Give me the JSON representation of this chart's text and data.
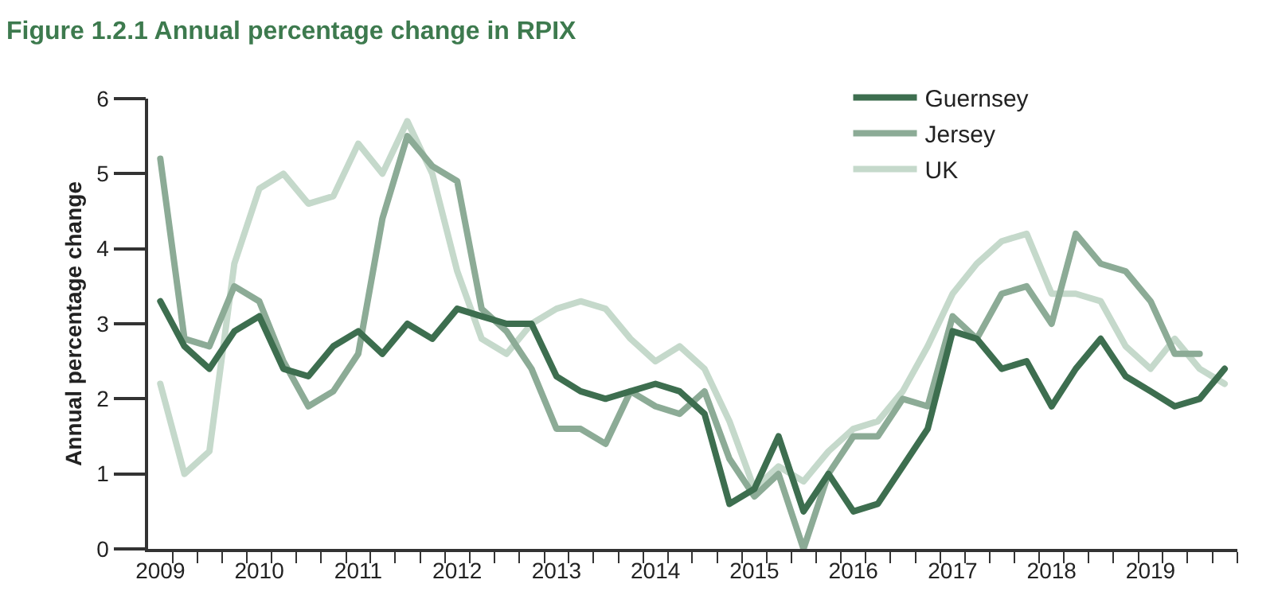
{
  "chart_data": {
    "type": "line",
    "title": "Figure 1.2.1 Annual percentage change in RPIX",
    "ylabel": "Annual percentage change",
    "x": [
      "2009-02-15",
      "2009-05-15",
      "2009-08-15",
      "2009-11-15",
      "2010-02-15",
      "2010-05-15",
      "2010-08-15",
      "2010-11-15",
      "2011-02-15",
      "2011-05-15",
      "2011-08-15",
      "2011-11-15",
      "2012-02-15",
      "2012-05-15",
      "2012-08-15",
      "2012-11-15",
      "2013-02-15",
      "2013-05-15",
      "2013-08-15",
      "2013-11-15",
      "2014-02-15",
      "2014-05-15",
      "2014-08-15",
      "2014-11-15",
      "2015-02-15",
      "2015-05-15",
      "2015-08-15",
      "2015-11-15",
      "2016-02-15",
      "2016-05-15",
      "2016-08-15",
      "2016-11-15",
      "2017-02-15",
      "2017-05-15",
      "2017-08-15",
      "2017-11-15",
      "2018-02-15",
      "2018-05-15",
      "2018-08-15",
      "2018-11-15",
      "2019-02-15",
      "2019-05-15",
      "2019-08-15",
      "2019-11-15"
    ],
    "series": [
      {
        "name": "Guernsey",
        "color": "#3d6e4f",
        "values": [
          3.3,
          2.7,
          2.4,
          2.9,
          3.1,
          2.4,
          2.3,
          2.7,
          2.9,
          2.6,
          3.0,
          2.8,
          3.2,
          3.1,
          3.0,
          3.0,
          2.3,
          2.1,
          2.0,
          2.1,
          2.2,
          2.1,
          1.8,
          0.6,
          0.8,
          1.5,
          0.5,
          1.0,
          0.5,
          0.6,
          1.1,
          1.6,
          2.9,
          2.8,
          2.4,
          2.5,
          1.9,
          2.4,
          2.8,
          2.3,
          2.1,
          1.9,
          2.0,
          2.4
        ]
      },
      {
        "name": "Jersey",
        "color": "#8cab96",
        "values": [
          5.2,
          2.8,
          2.7,
          3.5,
          3.3,
          2.5,
          1.9,
          2.1,
          2.6,
          4.4,
          5.5,
          5.1,
          4.9,
          3.2,
          2.9,
          2.4,
          1.6,
          1.6,
          1.4,
          2.1,
          1.9,
          1.8,
          2.1,
          1.2,
          0.7,
          1.0,
          0.0,
          1.0,
          1.5,
          1.5,
          2.0,
          1.9,
          3.1,
          2.8,
          3.4,
          3.5,
          3.0,
          4.2,
          3.8,
          3.7,
          3.3,
          2.6,
          2.6,
          null
        ]
      },
      {
        "name": "UK",
        "color": "#c5d9cb",
        "values": [
          2.2,
          1.0,
          1.3,
          3.8,
          4.8,
          5.0,
          4.6,
          4.7,
          5.4,
          5.0,
          5.7,
          5.0,
          3.7,
          2.8,
          2.6,
          3.0,
          3.2,
          3.3,
          3.2,
          2.8,
          2.5,
          2.7,
          2.4,
          1.7,
          0.8,
          1.1,
          0.9,
          1.3,
          1.6,
          1.7,
          2.1,
          2.7,
          3.4,
          3.8,
          4.1,
          4.2,
          3.4,
          3.4,
          3.3,
          2.7,
          2.4,
          2.8,
          2.4,
          2.2
        ]
      }
    ],
    "xlim": [
      "2009-01-01",
      "2020-01-01"
    ],
    "xticks": [
      {
        "value": "2009-02-15",
        "label": "2009"
      },
      {
        "value": "2010-02-15",
        "label": "2010"
      },
      {
        "value": "2011-02-15",
        "label": "2011"
      },
      {
        "value": "2012-02-15",
        "label": "2012"
      },
      {
        "value": "2013-02-15",
        "label": "2013"
      },
      {
        "value": "2014-02-15",
        "label": "2014"
      },
      {
        "value": "2015-02-15",
        "label": "2015"
      },
      {
        "value": "2016-02-15",
        "label": "2016"
      },
      {
        "value": "2017-02-15",
        "label": "2017"
      },
      {
        "value": "2018-02-15",
        "label": "2018"
      },
      {
        "value": "2019-02-15",
        "label": "2019"
      },
      {
        "value": "2009-04-01",
        "label": null
      },
      {
        "value": "2009-07-01",
        "label": null
      },
      {
        "value": "2009-10-01",
        "label": null
      },
      {
        "value": "2010-01-01",
        "label": null
      },
      {
        "value": "2010-04-01",
        "label": null
      },
      {
        "value": "2010-07-01",
        "label": null
      },
      {
        "value": "2010-10-01",
        "label": null
      },
      {
        "value": "2011-01-01",
        "label": null
      },
      {
        "value": "2011-04-01",
        "label": null
      },
      {
        "value": "2011-07-01",
        "label": null
      },
      {
        "value": "2011-10-01",
        "label": null
      },
      {
        "value": "2012-01-01",
        "label": null
      },
      {
        "value": "2012-04-01",
        "label": null
      },
      {
        "value": "2012-07-01",
        "label": null
      },
      {
        "value": "2012-10-01",
        "label": null
      },
      {
        "value": "2013-01-01",
        "label": null
      },
      {
        "value": "2013-04-01",
        "label": null
      },
      {
        "value": "2013-07-01",
        "label": null
      },
      {
        "value": "2013-10-01",
        "label": null
      },
      {
        "value": "2014-01-01",
        "label": null
      },
      {
        "value": "2014-04-01",
        "label": null
      },
      {
        "value": "2014-07-01",
        "label": null
      },
      {
        "value": "2014-10-01",
        "label": null
      },
      {
        "value": "2015-01-01",
        "label": null
      },
      {
        "value": "2015-04-01",
        "label": null
      },
      {
        "value": "2015-07-01",
        "label": null
      },
      {
        "value": "2015-10-01",
        "label": null
      },
      {
        "value": "2016-01-01",
        "label": null
      },
      {
        "value": "2016-04-01",
        "label": null
      },
      {
        "value": "2016-07-01",
        "label": null
      },
      {
        "value": "2016-10-01",
        "label": null
      },
      {
        "value": "2017-01-01",
        "label": null
      },
      {
        "value": "2017-04-01",
        "label": null
      },
      {
        "value": "2017-07-01",
        "label": null
      },
      {
        "value": "2017-10-01",
        "label": null
      },
      {
        "value": "2018-01-01",
        "label": null
      },
      {
        "value": "2018-04-01",
        "label": null
      },
      {
        "value": "2018-07-01",
        "label": null
      },
      {
        "value": "2018-10-01",
        "label": null
      },
      {
        "value": "2019-01-01",
        "label": null
      },
      {
        "value": "2019-04-01",
        "label": null
      },
      {
        "value": "2019-07-01",
        "label": null
      },
      {
        "value": "2019-10-01",
        "label": null
      },
      {
        "value": "2020-01-01",
        "label": null
      }
    ],
    "ylim": [
      0,
      6
    ],
    "yticks": [
      0,
      1,
      2,
      3,
      4,
      5,
      6
    ],
    "legend": "top right",
    "marker": "none",
    "line_style": "solid"
  }
}
